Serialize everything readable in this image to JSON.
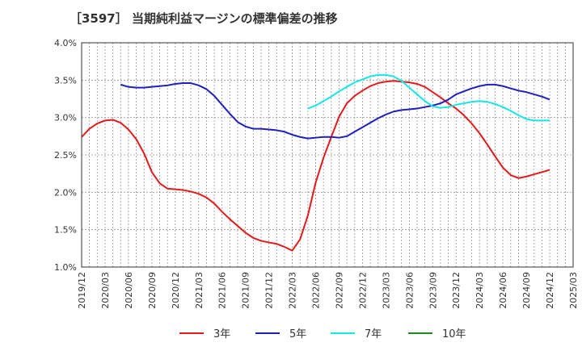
{
  "chart_data": {
    "type": "line",
    "title": "［3597］ 当期純利益マージンの標準偏差の推移",
    "xlabel": "",
    "ylabel": "",
    "ylim": [
      0.01,
      0.04
    ],
    "y_ticks": [
      0.01,
      0.015,
      0.02,
      0.025,
      0.03,
      0.035,
      0.04
    ],
    "y_tick_labels": [
      "1.0%",
      "1.5%",
      "2.0%",
      "2.5%",
      "3.0%",
      "3.5%",
      "4.0%"
    ],
    "x_ticks": [
      "2019/12",
      "2020/03",
      "2020/06",
      "2020/09",
      "2020/12",
      "2021/03",
      "2021/06",
      "2021/09",
      "2021/12",
      "2022/03",
      "2022/06",
      "2022/09",
      "2022/12",
      "2023/03",
      "2023/06",
      "2023/09",
      "2023/12",
      "2024/03",
      "2024/06",
      "2024/09",
      "2024/12",
      "2025/03"
    ],
    "grid": true,
    "legend_position": "bottom",
    "series": [
      {
        "name": "3年",
        "color": "#e41a1c",
        "x": [
          "2019/12",
          "2020/01",
          "2020/02",
          "2020/03",
          "2020/04",
          "2020/05",
          "2020/06",
          "2020/07",
          "2020/08",
          "2020/09",
          "2020/10",
          "2020/11",
          "2020/12",
          "2021/01",
          "2021/02",
          "2021/03",
          "2021/04",
          "2021/05",
          "2021/06",
          "2021/07",
          "2021/08",
          "2021/09",
          "2021/10",
          "2021/11",
          "2021/12",
          "2022/01",
          "2022/02",
          "2022/03",
          "2022/04",
          "2022/05",
          "2022/06",
          "2022/07",
          "2022/08",
          "2022/09",
          "2022/10",
          "2022/11",
          "2022/12",
          "2023/01",
          "2023/02",
          "2023/03",
          "2023/04",
          "2023/05",
          "2023/06",
          "2023/07",
          "2023/08",
          "2023/09",
          "2023/10",
          "2023/11",
          "2023/12",
          "2024/01",
          "2024/02",
          "2024/03",
          "2024/04",
          "2024/05",
          "2024/06",
          "2024/07",
          "2024/08",
          "2024/09",
          "2024/10",
          "2024/11",
          "2024/12"
        ],
        "values": [
          0.0274,
          0.0285,
          0.0292,
          0.0296,
          0.0297,
          0.0293,
          0.0284,
          0.0271,
          0.0252,
          0.0227,
          0.0212,
          0.0205,
          0.0204,
          0.0203,
          0.0201,
          0.0198,
          0.0193,
          0.0185,
          0.0174,
          0.0164,
          0.0155,
          0.0146,
          0.0139,
          0.0135,
          0.0133,
          0.0131,
          0.0127,
          0.0122,
          0.0137,
          0.0169,
          0.0213,
          0.0246,
          0.0274,
          0.0301,
          0.0319,
          0.0329,
          0.0336,
          0.0342,
          0.0346,
          0.0348,
          0.0349,
          0.0348,
          0.0347,
          0.0345,
          0.0341,
          0.0334,
          0.0327,
          0.0319,
          0.0312,
          0.0303,
          0.0292,
          0.0279,
          0.0264,
          0.0248,
          0.0233,
          0.0223,
          0.0219,
          0.0221,
          0.0224,
          0.0227,
          0.023
        ]
      },
      {
        "name": "5年",
        "color": "#1f1fbf",
        "x": [
          "2020/05",
          "2020/06",
          "2020/07",
          "2020/08",
          "2020/09",
          "2020/10",
          "2020/11",
          "2020/12",
          "2021/01",
          "2021/02",
          "2021/03",
          "2021/04",
          "2021/05",
          "2021/06",
          "2021/07",
          "2021/08",
          "2021/09",
          "2021/10",
          "2021/11",
          "2021/12",
          "2022/01",
          "2022/02",
          "2022/03",
          "2022/04",
          "2022/05",
          "2022/06",
          "2022/07",
          "2022/08",
          "2022/09",
          "2022/10",
          "2022/11",
          "2022/12",
          "2023/01",
          "2023/02",
          "2023/03",
          "2023/04",
          "2023/05",
          "2023/06",
          "2023/07",
          "2023/08",
          "2023/09",
          "2023/10",
          "2023/11",
          "2023/12",
          "2024/01",
          "2024/02",
          "2024/03",
          "2024/04",
          "2024/05",
          "2024/06",
          "2024/07",
          "2024/08",
          "2024/09",
          "2024/10",
          "2024/11",
          "2024/12"
        ],
        "values": [
          0.0344,
          0.0341,
          0.034,
          0.034,
          0.0341,
          0.0342,
          0.0343,
          0.0345,
          0.0346,
          0.0346,
          0.0343,
          0.0338,
          0.0329,
          0.0317,
          0.0305,
          0.0294,
          0.0288,
          0.0285,
          0.0285,
          0.0284,
          0.0283,
          0.0281,
          0.0277,
          0.0274,
          0.0272,
          0.0273,
          0.0274,
          0.0274,
          0.0273,
          0.0275,
          0.0281,
          0.0287,
          0.0293,
          0.0299,
          0.0304,
          0.0308,
          0.031,
          0.0311,
          0.0312,
          0.0314,
          0.0316,
          0.0319,
          0.0324,
          0.0331,
          0.0335,
          0.0339,
          0.0342,
          0.0344,
          0.0344,
          0.0342,
          0.0339,
          0.0336,
          0.0334,
          0.0331,
          0.0328,
          0.0324
        ]
      },
      {
        "name": "7年",
        "color": "#17e6e6",
        "x": [
          "2022/05",
          "2022/06",
          "2022/07",
          "2022/08",
          "2022/09",
          "2022/10",
          "2022/11",
          "2022/12",
          "2023/01",
          "2023/02",
          "2023/03",
          "2023/04",
          "2023/05",
          "2023/06",
          "2023/07",
          "2023/08",
          "2023/09",
          "2023/10",
          "2023/11",
          "2023/12",
          "2024/01",
          "2024/02",
          "2024/03",
          "2024/04",
          "2024/05",
          "2024/06",
          "2024/07",
          "2024/08",
          "2024/09",
          "2024/10",
          "2024/11",
          "2024/12"
        ],
        "values": [
          0.0312,
          0.0316,
          0.0322,
          0.0328,
          0.0335,
          0.0341,
          0.0347,
          0.0351,
          0.0355,
          0.0357,
          0.0357,
          0.0355,
          0.0349,
          0.034,
          0.0331,
          0.0322,
          0.0315,
          0.0313,
          0.0314,
          0.0317,
          0.0319,
          0.0321,
          0.0322,
          0.0321,
          0.0318,
          0.0314,
          0.0309,
          0.0303,
          0.0298,
          0.0296,
          0.0296,
          0.0296
        ]
      },
      {
        "name": "10年",
        "color": "#1a8a1a",
        "x": [],
        "values": []
      }
    ]
  }
}
